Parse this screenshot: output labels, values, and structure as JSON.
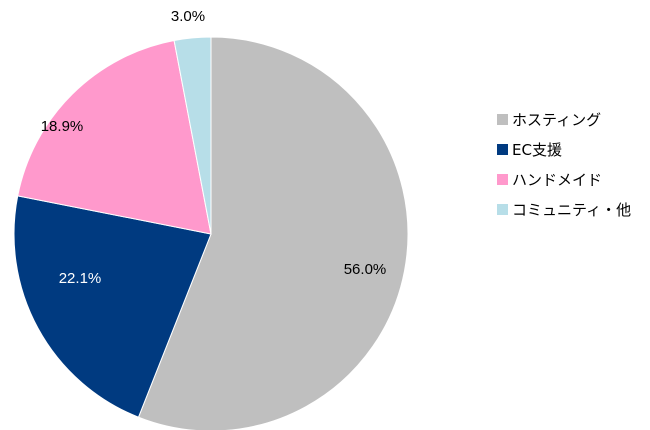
{
  "chart_data": {
    "type": "pie",
    "title": "",
    "start_angle": "12 o'clock",
    "direction": "clockwise",
    "slices": [
      {
        "label": "ホスティング",
        "value": 56.0,
        "value_label": "56.0%",
        "color": "#bfbfbf",
        "label_color": "#000000"
      },
      {
        "label": "EC支援",
        "value": 22.1,
        "value_label": "22.1%",
        "color": "#003a80",
        "label_color": "#ffffff"
      },
      {
        "label": "ハンドメイド",
        "value": 18.9,
        "value_label": "18.9%",
        "color": "#ff99cc",
        "label_color": "#000000"
      },
      {
        "label": "コミュニティ・他",
        "value": 3.0,
        "value_label": "3.0%",
        "color": "#b7dee8",
        "label_color": "#000000"
      }
    ],
    "legend_position": "right"
  }
}
